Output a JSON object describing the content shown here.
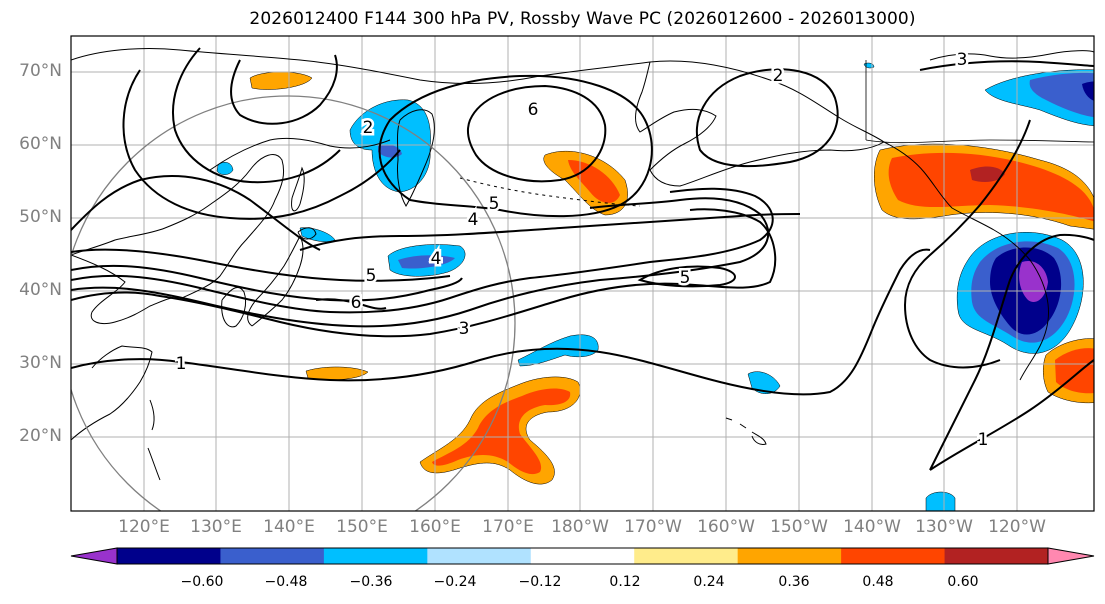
{
  "title": "2026012400 F144 300 hPa PV, Rossby Wave PC (2026012600 - 2026013000)",
  "lat_labels": [
    "70°N",
    "60°N",
    "50°N",
    "40°N",
    "30°N",
    "20°N"
  ],
  "lon_labels": [
    "120°E",
    "130°E",
    "140°E",
    "150°E",
    "160°E",
    "170°E",
    "180°W",
    "170°W",
    "160°W",
    "150°W",
    "140°W",
    "130°W",
    "120°W"
  ],
  "contour_labels": [
    "1",
    "1",
    "2",
    "2",
    "3",
    "3",
    "4",
    "4",
    "5",
    "5",
    "5",
    "6",
    "6"
  ],
  "colorbar": {
    "tick_labels": [
      "−0.60",
      "−0.48",
      "−0.36",
      "−0.24",
      "−0.12",
      "0.12",
      "0.24",
      "0.36",
      "0.48",
      "0.60"
    ],
    "colors": [
      "#9932cc",
      "#00008b",
      "#3a5fcd",
      "#00bfff",
      "#b0e2ff",
      "#ffffff",
      "#ffec8b",
      "#ffa500",
      "#ff4500",
      "#b22222",
      "#ff88b0"
    ]
  },
  "colors": {
    "strong_negative": "#00008b",
    "negative": "#3a5fcd",
    "weak_negative": "#00bfff",
    "weak_positive": "#ffa500",
    "positive": "#ff4500",
    "strong_positive": "#b22222"
  }
}
